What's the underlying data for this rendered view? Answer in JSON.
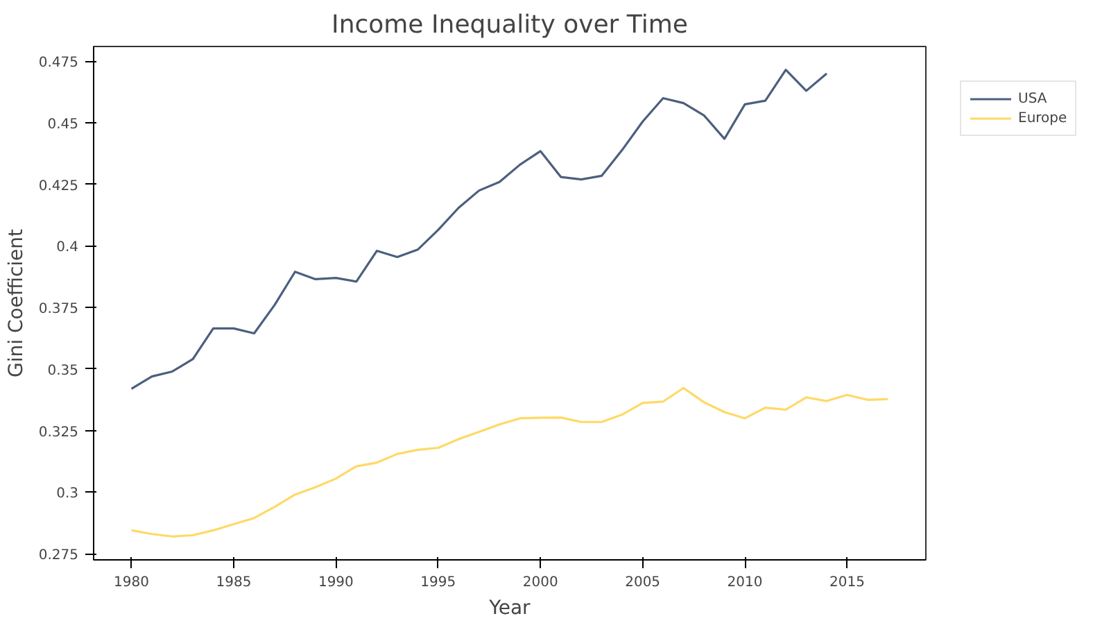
{
  "chart_data": {
    "type": "line",
    "title": "Income Inequality over Time",
    "xlabel": "Year",
    "ylabel": "Gini Coefficient",
    "xlim": [
      1978.15,
      2018.85
    ],
    "ylim": [
      0.2725,
      0.481
    ],
    "xticks": [
      1980,
      1985,
      1990,
      1995,
      2000,
      2005,
      2010,
      2015
    ],
    "yticks": [
      0.275,
      0.3,
      0.325,
      0.35,
      0.375,
      0.4,
      0.425,
      0.45,
      0.475
    ],
    "legend": "top right",
    "grid": false,
    "line_style": "solid",
    "series": [
      {
        "name": "USA",
        "color": "#4c5f7e",
        "x": [
          1980,
          1981,
          1982,
          1983,
          1984,
          1985,
          1986,
          1987,
          1988,
          1989,
          1990,
          1991,
          1992,
          1993,
          1994,
          1995,
          1996,
          1997,
          1998,
          1999,
          2000,
          2001,
          2002,
          2003,
          2004,
          2005,
          2006,
          2007,
          2008,
          2009,
          2010,
          2011,
          2012,
          2013,
          2014
        ],
        "values": [
          0.342,
          0.347,
          0.349,
          0.354,
          0.3665,
          0.3665,
          0.3645,
          0.376,
          0.3895,
          0.3865,
          0.387,
          0.3855,
          0.398,
          0.3955,
          0.3985,
          0.4065,
          0.4155,
          0.4225,
          0.426,
          0.433,
          0.4385,
          0.428,
          0.427,
          0.4285,
          0.439,
          0.4505,
          0.46,
          0.458,
          0.453,
          0.4435,
          0.4575,
          0.459,
          0.4715,
          0.463,
          0.47
        ]
      },
      {
        "name": "Europe",
        "color": "#ffd966",
        "x": [
          1980,
          1981,
          1982,
          1983,
          1984,
          1985,
          1986,
          1987,
          1988,
          1989,
          1990,
          1991,
          1992,
          1993,
          1994,
          1995,
          1996,
          1997,
          1998,
          1999,
          2000,
          2001,
          2002,
          2003,
          2004,
          2005,
          2006,
          2007,
          2008,
          2009,
          2010,
          2011,
          2012,
          2013,
          2014,
          2015,
          2016,
          2017
        ],
        "values": [
          0.2845,
          0.283,
          0.282,
          0.2825,
          0.2845,
          0.287,
          0.2895,
          0.294,
          0.299,
          0.302,
          0.3055,
          0.3105,
          0.312,
          0.3155,
          0.3172,
          0.318,
          0.3215,
          0.3245,
          0.3275,
          0.33,
          0.3302,
          0.3303,
          0.3285,
          0.3285,
          0.3315,
          0.3362,
          0.3368,
          0.3423,
          0.3365,
          0.3325,
          0.33,
          0.3343,
          0.3335,
          0.3385,
          0.337,
          0.3395,
          0.3375,
          0.3378
        ]
      }
    ]
  }
}
